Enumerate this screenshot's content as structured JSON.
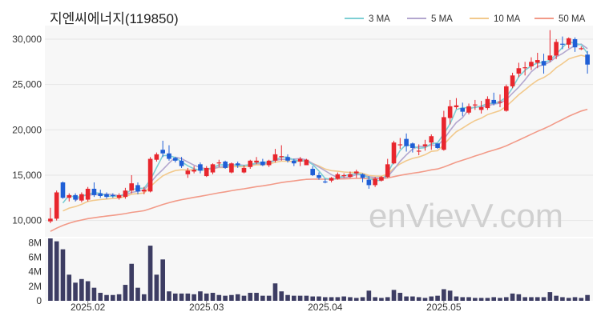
{
  "title": "지엔씨에너지(119850)",
  "watermark": "enVievV.com",
  "chart_data": {
    "type": "candlestick",
    "price_axis": {
      "ylim": [
        8200,
        31500
      ],
      "ticks": [
        10000,
        15000,
        20000,
        25000,
        30000
      ],
      "tick_labels": [
        "10,000",
        "15,000",
        "20,000",
        "25,000",
        "30,000"
      ]
    },
    "volume_axis": {
      "ylim": [
        0,
        8600000
      ],
      "ticks": [
        0,
        2000000,
        4000000,
        6000000,
        8000000
      ],
      "tick_labels": [
        "0",
        "2M",
        "4M",
        "6M",
        "8M"
      ]
    },
    "x_ticks": [
      {
        "index": 6,
        "label": "2025.02"
      },
      {
        "index": 25,
        "label": "2025.03"
      },
      {
        "index": 44,
        "label": "2025.04"
      },
      {
        "index": 63,
        "label": "2025.05"
      }
    ],
    "legend_position": "top-right",
    "legend": [
      {
        "label": "3 MA",
        "color": "#7ecfd4"
      },
      {
        "label": "5 MA",
        "color": "#b3a7cf"
      },
      {
        "label": "10 MA",
        "color": "#f2c98c"
      },
      {
        "label": "50 MA",
        "color": "#f29a88"
      }
    ],
    "colors": {
      "up": "#e8262d",
      "down": "#1f5fd6",
      "volume": "#3d3d63"
    },
    "candles": [
      [
        9900,
        11400,
        9700,
        10200
      ],
      [
        10200,
        13300,
        10000,
        13100
      ],
      [
        14200,
        14300,
        12400,
        12500
      ],
      [
        12500,
        13000,
        12100,
        12800
      ],
      [
        12800,
        13000,
        12100,
        12300
      ],
      [
        12200,
        13100,
        12000,
        12900
      ],
      [
        12300,
        13700,
        12100,
        13500
      ],
      [
        13500,
        14200,
        12600,
        12800
      ],
      [
        13000,
        13400,
        12500,
        12700
      ],
      [
        12900,
        13100,
        12400,
        12600
      ],
      [
        12800,
        13000,
        12500,
        12700
      ],
      [
        12500,
        13000,
        12300,
        12800
      ],
      [
        12600,
        13600,
        12400,
        13300
      ],
      [
        13300,
        15000,
        13000,
        14100
      ],
      [
        13900,
        14200,
        12900,
        13200
      ],
      [
        13200,
        13700,
        12900,
        13400
      ],
      [
        13200,
        17000,
        13100,
        16800
      ],
      [
        16700,
        17500,
        16500,
        17300
      ],
      [
        17800,
        18800,
        17000,
        17400
      ],
      [
        17400,
        18300,
        16600,
        16800
      ],
      [
        16900,
        17000,
        16400,
        16600
      ],
      [
        16600,
        17000,
        15800,
        16000
      ],
      [
        15100,
        15800,
        14700,
        15500
      ],
      [
        15400,
        16000,
        15200,
        15600
      ],
      [
        16200,
        16400,
        15200,
        15500
      ],
      [
        14900,
        16000,
        14800,
        15800
      ],
      [
        15300,
        16300,
        15100,
        16200
      ],
      [
        16400,
        16700,
        15900,
        16400
      ],
      [
        16500,
        16600,
        15700,
        15800
      ],
      [
        15300,
        16400,
        15200,
        16300
      ],
      [
        16300,
        16500,
        15800,
        16100
      ],
      [
        15300,
        16100,
        15200,
        15800
      ],
      [
        15900,
        16700,
        15700,
        16600
      ],
      [
        16400,
        17000,
        16200,
        16600
      ],
      [
        16500,
        16800,
        16000,
        16100
      ],
      [
        16100,
        16700,
        15900,
        16600
      ],
      [
        16600,
        17900,
        16400,
        17300
      ],
      [
        17100,
        18300,
        16600,
        17100
      ],
      [
        17000,
        17300,
        16400,
        16600
      ],
      [
        16600,
        16800,
        16000,
        16300
      ],
      [
        16500,
        17000,
        16000,
        16800
      ],
      [
        16100,
        16800,
        16200,
        16700
      ],
      [
        15700,
        16000,
        14900,
        15000
      ],
      [
        15000,
        15300,
        14500,
        14700
      ],
      [
        14300,
        14600,
        14100,
        14200
      ],
      [
        14400,
        14800,
        14200,
        14700
      ],
      [
        14600,
        15300,
        14500,
        15100
      ],
      [
        14900,
        15200,
        14700,
        15000
      ],
      [
        14800,
        15400,
        14700,
        15100
      ],
      [
        15200,
        15600,
        14700,
        15400
      ],
      [
        15100,
        15200,
        14200,
        14700
      ],
      [
        14500,
        14900,
        13500,
        13900
      ],
      [
        13900,
        14800,
        13700,
        14600
      ],
      [
        14400,
        14900,
        14300,
        14800
      ],
      [
        14800,
        16800,
        14700,
        16200
      ],
      [
        16300,
        18800,
        16200,
        18600
      ],
      [
        18300,
        19100,
        17900,
        18400
      ],
      [
        19000,
        19600,
        17600,
        18200
      ],
      [
        18500,
        18600,
        17500,
        18000
      ],
      [
        17600,
        18400,
        17200,
        17700
      ],
      [
        18200,
        18900,
        17700,
        18400
      ],
      [
        18600,
        19500,
        17800,
        19300
      ],
      [
        18500,
        18500,
        17900,
        18000
      ],
      [
        17800,
        22100,
        17700,
        21400
      ],
      [
        21300,
        23300,
        20600,
        22600
      ],
      [
        22500,
        23500,
        22300,
        22700
      ],
      [
        22400,
        23000,
        21500,
        22000
      ],
      [
        21900,
        22900,
        21700,
        22600
      ],
      [
        22700,
        23300,
        22200,
        22800
      ],
      [
        22200,
        23200,
        21800,
        22500
      ],
      [
        22400,
        23700,
        22200,
        23400
      ],
      [
        23300,
        24100,
        22700,
        22900
      ],
      [
        23000,
        23900,
        22500,
        23100
      ],
      [
        22100,
        25000,
        22000,
        24800
      ],
      [
        24800,
        26300,
        24600,
        26000
      ],
      [
        26200,
        27400,
        25800,
        26800
      ],
      [
        26800,
        27500,
        26000,
        26900
      ],
      [
        27000,
        28000,
        26600,
        27500
      ],
      [
        27400,
        28500,
        26800,
        27700
      ],
      [
        27600,
        28400,
        26200,
        27100
      ],
      [
        27700,
        31000,
        27500,
        28200
      ],
      [
        28200,
        30000,
        27800,
        29700
      ],
      [
        29500,
        30300,
        28900,
        29400
      ],
      [
        29400,
        30200,
        29000,
        30100
      ],
      [
        30000,
        30200,
        28600,
        29100
      ],
      [
        28900,
        29200,
        28800,
        29000
      ],
      [
        28300,
        28700,
        26200,
        27200
      ]
    ],
    "volume": [
      8600000,
      8200000,
      7100000,
      3600000,
      2500000,
      3000000,
      2700000,
      1800000,
      1100000,
      800000,
      800000,
      900000,
      2200000,
      5100000,
      1800000,
      900000,
      7600000,
      3600000,
      5700000,
      1300000,
      1000000,
      1000000,
      1000000,
      900000,
      1300000,
      1000000,
      1100000,
      800000,
      700000,
      800000,
      900000,
      700000,
      1100000,
      1100000,
      700000,
      700000,
      2400000,
      1300000,
      800000,
      700000,
      700000,
      700000,
      600000,
      600000,
      500000,
      500000,
      500000,
      600000,
      500000,
      400000,
      500000,
      1400000,
      500000,
      400000,
      500000,
      1500000,
      1100000,
      600000,
      600000,
      500000,
      400000,
      600000,
      700000,
      1600000,
      1400000,
      600000,
      500000,
      500000,
      400000,
      400000,
      400000,
      500000,
      400000,
      500000,
      1000000,
      900000,
      500000,
      500000,
      500000,
      500000,
      1200000,
      700000,
      500000,
      400000,
      500000,
      400000,
      800000
    ],
    "ma50_start": [
      8800,
      9150,
      9450,
      9700,
      9900,
      10050,
      10200
    ]
  }
}
